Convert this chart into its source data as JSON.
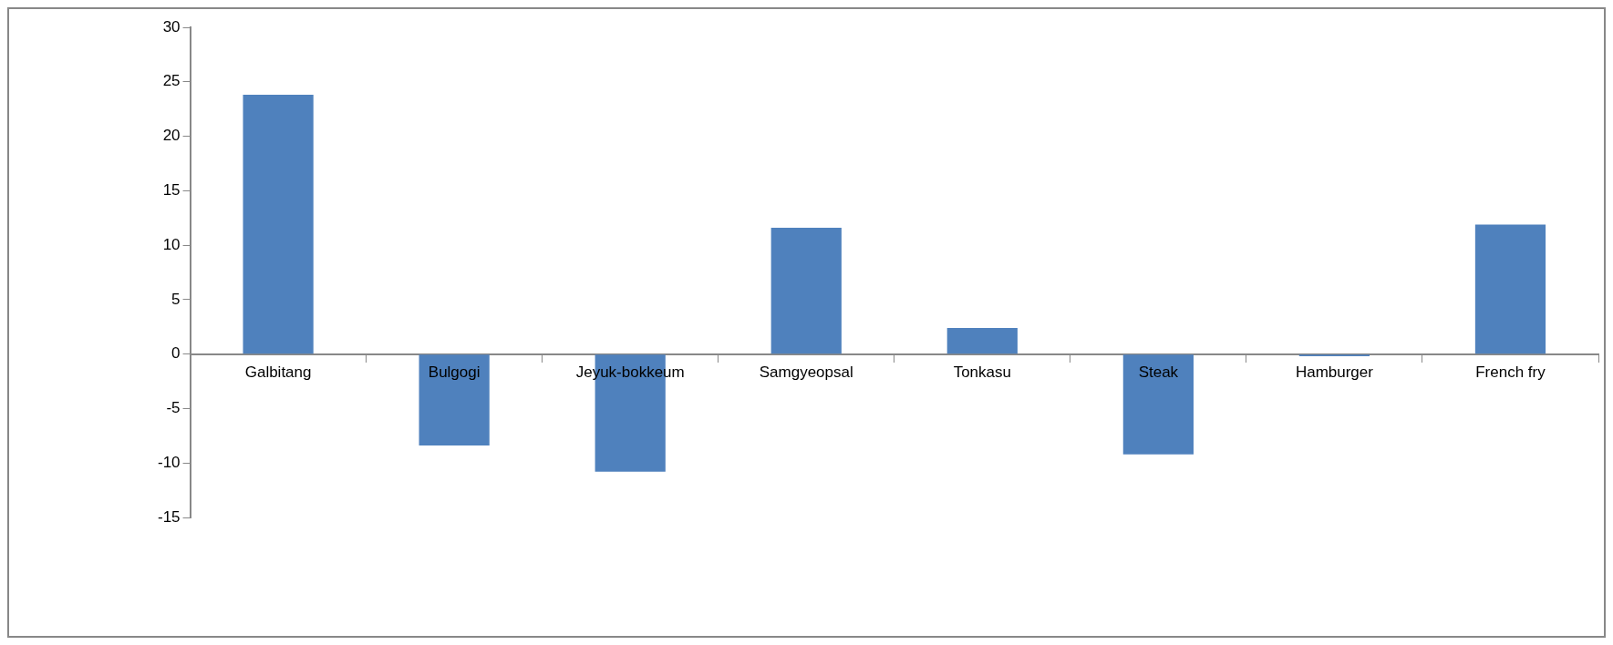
{
  "chart_data": {
    "type": "bar",
    "categories": [
      "Galbitang",
      "Bulgogi",
      "Jeyuk-bokkeum",
      "Samgyeopsal",
      "Tonkasu",
      "Steak",
      "Hamburger",
      "French fry"
    ],
    "values": [
      23.8,
      -8.4,
      -10.8,
      11.6,
      2.4,
      -9.2,
      -0.2,
      11.9
    ],
    "color": "#4f81bd",
    "ylim": [
      -15,
      30
    ],
    "yticks": [
      -15,
      -10,
      -5,
      0,
      5,
      10,
      15,
      20,
      25,
      30
    ],
    "grid": false,
    "legend": false
  }
}
